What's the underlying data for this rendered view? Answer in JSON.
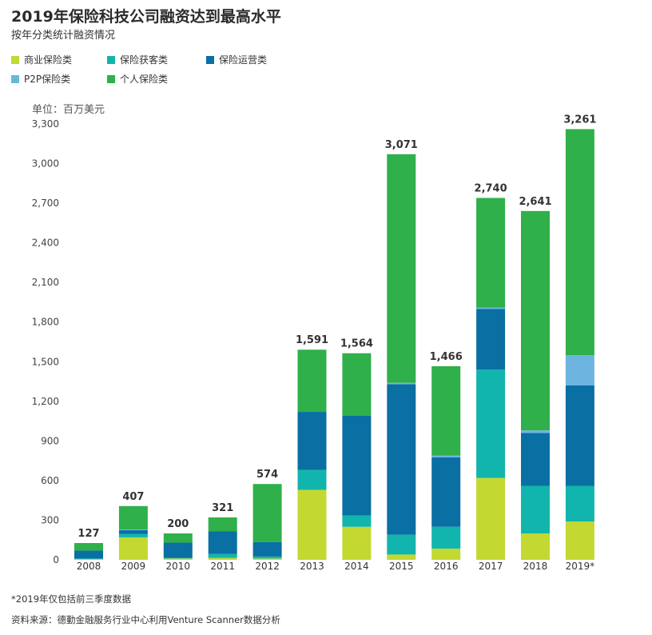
{
  "header": {
    "title": "2019年保险科技公司融资达到最高水平",
    "subtitle": "按年分类统计融资情况"
  },
  "legend": [
    {
      "label": "商业保险类",
      "color": "#c3d831"
    },
    {
      "label": "保险获客类",
      "color": "#12b5ad"
    },
    {
      "label": "保险运营类",
      "color": "#0a6fa3"
    },
    {
      "label": "P2P保险类",
      "color": "#6db5e0"
    },
    {
      "label": "个人保险类",
      "color": "#2fb04a"
    }
  ],
  "unit_label": "单位：百万美元",
  "footnote": "*2019年仅包括前三季度数据",
  "source": "资料来源：德勤金融服务行业中心利用Venture Scanner数据分析",
  "chart_data": {
    "type": "bar",
    "stacked": true,
    "title": "2019年保险科技公司融资达到最高水平",
    "subtitle": "按年分类统计融资情况",
    "xlabel": "",
    "ylabel": "单位：百万美元",
    "ylim": [
      0,
      3300
    ],
    "yticks": [
      0,
      300,
      600,
      900,
      1200,
      1500,
      1800,
      2100,
      2400,
      2700,
      3000,
      3300
    ],
    "ytick_labels": [
      "0",
      "300",
      "600",
      "900",
      "1,200",
      "1,500",
      "1,800",
      "2,100",
      "2,400",
      "2,700",
      "3,000",
      "3,300"
    ],
    "grid": false,
    "legend_position": "top-left",
    "categories": [
      "2008",
      "2009",
      "2010",
      "2011",
      "2012",
      "2013",
      "2014",
      "2015",
      "2016",
      "2017",
      "2018",
      "2019*"
    ],
    "totals": [
      127,
      407,
      200,
      321,
      574,
      1591,
      1564,
      3071,
      1466,
      2740,
      2641,
      3261
    ],
    "total_labels": [
      "127",
      "407",
      "200",
      "321",
      "574",
      "1,591",
      "1,564",
      "3,071",
      "1,466",
      "2,740",
      "2,641",
      "3,261"
    ],
    "series": [
      {
        "name": "商业保险类",
        "color": "#c3d831",
        "values": [
          5,
          170,
          10,
          15,
          10,
          530,
          250,
          40,
          85,
          620,
          200,
          290
        ]
      },
      {
        "name": "保险获客类",
        "color": "#12b5ad",
        "values": [
          5,
          25,
          5,
          30,
          15,
          150,
          85,
          150,
          165,
          820,
          360,
          270
        ]
      },
      {
        "name": "保险运营类",
        "color": "#0a6fa3",
        "values": [
          60,
          30,
          115,
          170,
          110,
          440,
          755,
          1140,
          525,
          460,
          400,
          760
        ]
      },
      {
        "name": "P2P保险类",
        "color": "#6db5e0",
        "values": [
          0,
          5,
          0,
          0,
          0,
          0,
          0,
          10,
          15,
          10,
          20,
          230
        ]
      },
      {
        "name": "个人保险类",
        "color": "#2fb04a",
        "values": [
          57,
          177,
          70,
          106,
          439,
          471,
          474,
          1731,
          676,
          830,
          1661,
          1711
        ]
      }
    ]
  }
}
